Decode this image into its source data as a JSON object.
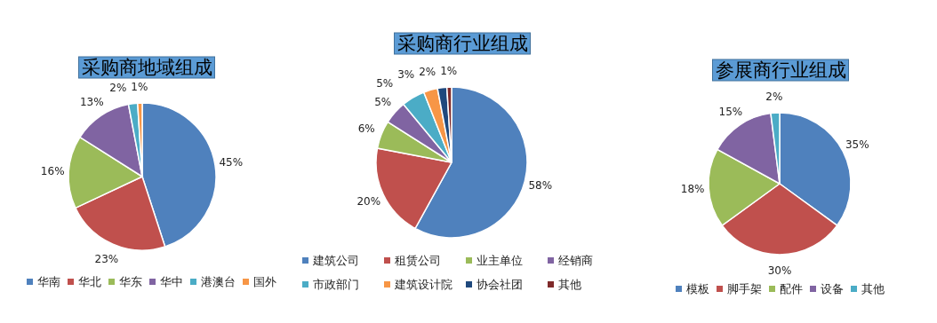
{
  "chart_data": [
    {
      "type": "pie",
      "title": "采购商地域组成",
      "categories": [
        "华南",
        "华北",
        "华东",
        "华中",
        "港澳台",
        "国外"
      ],
      "values": [
        45,
        23,
        16,
        13,
        2,
        1
      ],
      "colors": [
        "#4f81bd",
        "#c0504d",
        "#9bbb59",
        "#8064a2",
        "#4bacc6",
        "#f79646"
      ],
      "value_labels": [
        "45%",
        "23%",
        "16%",
        "13%",
        "2%",
        "1%"
      ],
      "legend": "bottom"
    },
    {
      "type": "pie",
      "title": "采购商行业组成",
      "categories": [
        "建筑公司",
        "租赁公司",
        "业主单位",
        "经销商",
        "市政部门",
        "建筑设计院",
        "协会社团",
        "其他"
      ],
      "values": [
        58,
        20,
        6,
        5,
        5,
        3,
        2,
        1
      ],
      "colors": [
        "#4f81bd",
        "#c0504d",
        "#9bbb59",
        "#8064a2",
        "#4bacc6",
        "#f79646",
        "#1f497d",
        "#7f2a2a"
      ],
      "value_labels": [
        "58%",
        "20%",
        "6%",
        "5%",
        "5%",
        "3%",
        "2%",
        "1%"
      ],
      "legend": "bottom"
    },
    {
      "type": "pie",
      "title": "参展商行业组成",
      "categories": [
        "模板",
        "脚手架",
        "配件",
        "设备",
        "其他"
      ],
      "values": [
        35,
        30,
        18,
        15,
        2
      ],
      "colors": [
        "#4f81bd",
        "#c0504d",
        "#9bbb59",
        "#8064a2",
        "#4bacc6"
      ],
      "value_labels": [
        "35%",
        "30%",
        "18%",
        "15%",
        "2%"
      ],
      "legend": "bottom"
    }
  ]
}
